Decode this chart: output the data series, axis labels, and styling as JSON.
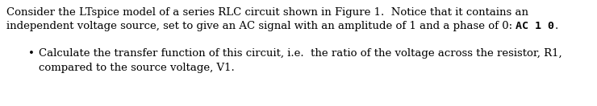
{
  "background_color": "#ffffff",
  "text_color": "#000000",
  "paragraph1_line1": "Consider the LTspice model of a series RLC circuit shown in Figure 1.  Notice that it contains an",
  "paragraph1_line2_normal": "independent voltage source, set to give an AC signal with an amplitude of 1 and a phase of 0: ",
  "paragraph1_line2_mono": "AC 1 0",
  "paragraph1_line2_end": ".",
  "bullet_symbol": "•",
  "bullet_line1": "Calculate the transfer function of this circuit, i.e.  the ratio of the voltage across the resistor, R1,",
  "bullet_line2": "compared to the source voltage, V1.",
  "font_size": 9.5,
  "fig_width": 7.4,
  "fig_height": 1.32,
  "dpi": 100
}
